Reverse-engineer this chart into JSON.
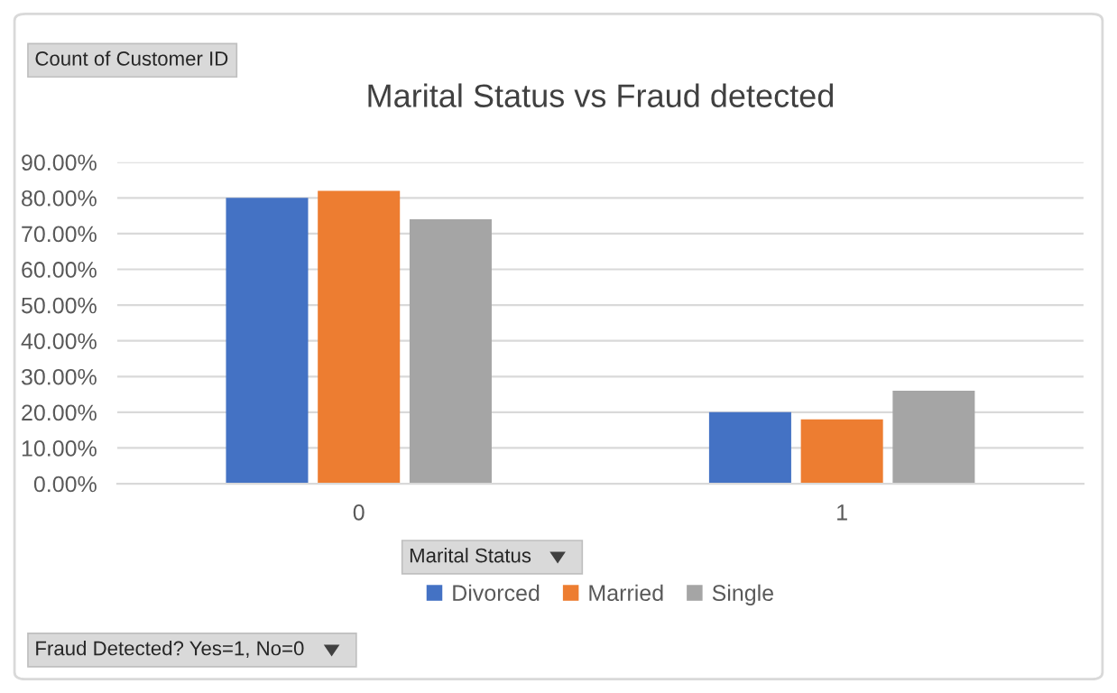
{
  "chart_data": {
    "type": "bar",
    "title": "Marital Status vs Fraud detected",
    "categories": [
      "0",
      "1"
    ],
    "series": [
      {
        "name": "Divorced",
        "color": "#4472c4",
        "values": [
          80,
          20
        ]
      },
      {
        "name": "Married",
        "color": "#ed7d31",
        "values": [
          82,
          18
        ]
      },
      {
        "name": "Single",
        "color": "#a5a5a5",
        "values": [
          74,
          26
        ]
      }
    ],
    "ylim": [
      0,
      90
    ],
    "yticks": [
      {
        "value": 0,
        "label": "0.00%"
      },
      {
        "value": 10,
        "label": "10.00%"
      },
      {
        "value": 20,
        "label": "20.00%"
      },
      {
        "value": 30,
        "label": "30.00%"
      },
      {
        "value": 40,
        "label": "40.00%"
      },
      {
        "value": 50,
        "label": "50.00%"
      },
      {
        "value": 60,
        "label": "60.00%"
      },
      {
        "value": 70,
        "label": "70.00%"
      },
      {
        "value": 80,
        "label": "80.00%"
      },
      {
        "value": 90,
        "label": "90.00%"
      }
    ],
    "grid": "y",
    "legend": "bottom",
    "annotations": [
      "Count of Customer ID",
      "Marital Status",
      "Fraud Detected? Yes=1, No=0"
    ]
  }
}
